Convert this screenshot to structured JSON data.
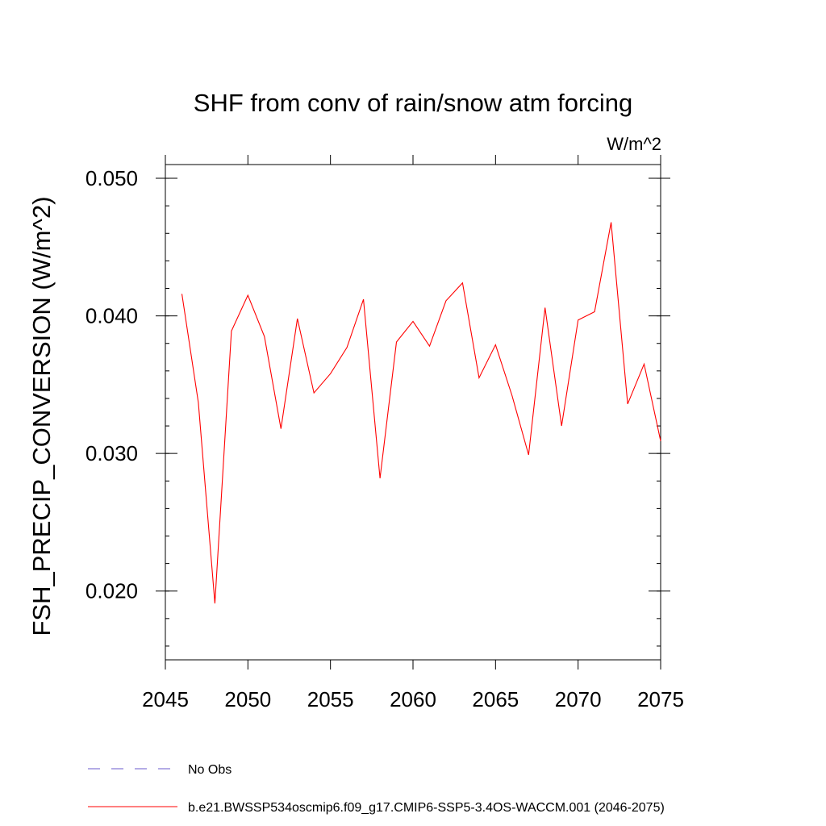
{
  "chart_data": {
    "type": "line",
    "title": "SHF from conv of rain/snow atm forcing",
    "units": "W/m^2",
    "ylabel": "FSH_PRECIP_CONVERSION  (W/m^2)",
    "xlabel": "",
    "xlim": [
      2045,
      2075
    ],
    "ylim": [
      0.015,
      0.051
    ],
    "x_ticks": [
      2045,
      2050,
      2055,
      2060,
      2065,
      2070,
      2075
    ],
    "x_tick_labels": [
      "2045",
      "2050",
      "2055",
      "2060",
      "2065",
      "2070",
      "2075"
    ],
    "y_ticks": [
      0.02,
      0.03,
      0.04,
      0.05
    ],
    "y_tick_labels": [
      "0.020",
      "0.030",
      "0.040",
      "0.050"
    ],
    "grid": false,
    "legend_placement": "bottom",
    "series": [
      {
        "name": "No Obs",
        "color": "#6a5acd",
        "dash": "dashed",
        "x": [],
        "values": []
      },
      {
        "name": "b.e21.BWSSP534oscmip6.f09_g17.CMIP6-SSP5-3.4OS-WACCM.001 (2046-2075)",
        "color": "#ff0000",
        "dash": "solid",
        "x": [
          2046,
          2047,
          2048,
          2049,
          2050,
          2051,
          2052,
          2053,
          2054,
          2055,
          2056,
          2057,
          2058,
          2059,
          2060,
          2061,
          2062,
          2063,
          2064,
          2065,
          2066,
          2067,
          2068,
          2069,
          2070,
          2071,
          2072,
          2073,
          2074,
          2075
        ],
        "values": [
          0.0416,
          0.0337,
          0.0191,
          0.0389,
          0.0415,
          0.0385,
          0.0318,
          0.0398,
          0.0344,
          0.0358,
          0.0377,
          0.0412,
          0.0282,
          0.0381,
          0.0396,
          0.0378,
          0.0411,
          0.0424,
          0.0355,
          0.0379,
          0.0342,
          0.0299,
          0.0406,
          0.032,
          0.0397,
          0.0403,
          0.0468,
          0.0336,
          0.0365,
          0.0309
        ]
      }
    ]
  }
}
